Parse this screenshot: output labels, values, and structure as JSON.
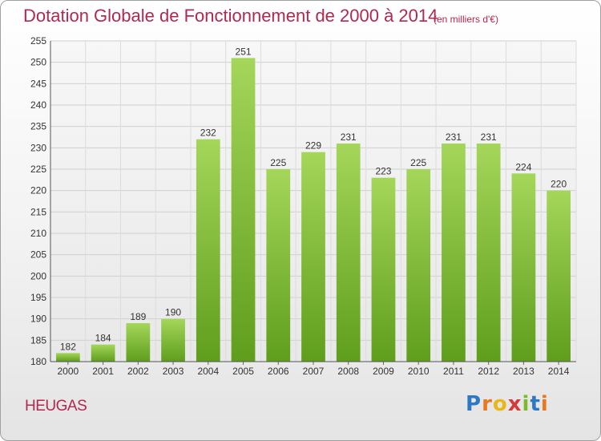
{
  "chart_data": {
    "type": "bar",
    "title": "Dotation Globale de Fonctionnement de 2000 à 2014",
    "subtitle": "(en milliers d'€)",
    "categories": [
      "2000",
      "2001",
      "2002",
      "2003",
      "2004",
      "2005",
      "2006",
      "2007",
      "2008",
      "2009",
      "2010",
      "2011",
      "2012",
      "2013",
      "2014"
    ],
    "values": [
      182,
      184,
      189,
      190,
      232,
      251,
      225,
      229,
      231,
      223,
      225,
      231,
      231,
      224,
      220
    ],
    "ylim": [
      180,
      255
    ],
    "yticks": [
      180,
      185,
      190,
      195,
      200,
      205,
      210,
      215,
      220,
      225,
      230,
      235,
      240,
      245,
      250,
      255
    ],
    "grid": true,
    "bar_color": "#7ab830",
    "xlabel": "",
    "ylabel": ""
  },
  "location": "HEUGAS",
  "logo": {
    "letters": [
      "P",
      "r",
      "o",
      "x",
      "i",
      "t",
      "i"
    ]
  }
}
